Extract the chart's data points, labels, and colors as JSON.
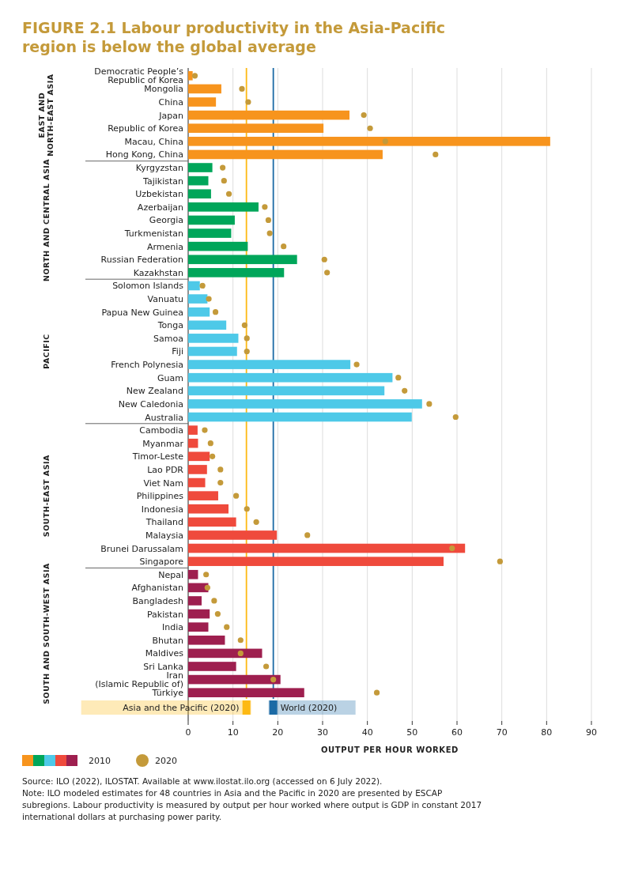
{
  "chart_data": {
    "type": "bar",
    "orientation": "horizontal",
    "title": "FIGURE 2.1 Labour productivity in the Asia-Pacific region is below the global average",
    "xlabel": "OUTPUT PER HOUR WORKED",
    "categories": [
      "Democratic People’s\nRepublic of Korea",
      "Mongolia",
      "China",
      "Japan",
      "Republic of Korea",
      "Macau, China",
      "Hong Kong, China",
      "Kyrgyzstan",
      "Tajikistan",
      "Uzbekistan",
      "Azerbaijan",
      "Georgia",
      "Turkmenistan",
      "Armenia",
      "Russian Federation",
      "Kazakhstan",
      "Solomon Islands",
      "Vanuatu",
      "Papua New Guinea",
      "Tonga",
      "Samoa",
      "Fiji",
      "French Polynesia",
      "Guam",
      "New Zealand",
      "New Caledonia",
      "Australia",
      "Cambodia",
      "Myanmar",
      "Timor-Leste",
      "Lao PDR",
      "Viet Nam",
      "Philippines",
      "Indonesia",
      "Thailand",
      "Malaysia",
      "Brunei Darussalam",
      "Singapore",
      "Nepal",
      "Afghanistan",
      "Bangladesh",
      "Pakistan",
      "India",
      "Bhutan",
      "Maldives",
      "Sri Lanka",
      "Iran\n(Islamic Republic of)",
      "Türkiye"
    ],
    "series": [
      {
        "name": "2010",
        "colors": [
          "#f7941d",
          "#f7941d",
          "#f7941d",
          "#f7941d",
          "#f7941d",
          "#f7941d",
          "#f7941d",
          "#00a65a",
          "#00a65a",
          "#00a65a",
          "#00a65a",
          "#00a65a",
          "#00a65a",
          "#00a65a",
          "#00a65a",
          "#00a65a",
          "#4ec9e8",
          "#4ec9e8",
          "#4ec9e8",
          "#4ec9e8",
          "#4ec9e8",
          "#4ec9e8",
          "#4ec9e8",
          "#4ec9e8",
          "#4ec9e8",
          "#4ec9e8",
          "#4ec9e8",
          "#ef4a3c",
          "#ef4a3c",
          "#ef4a3c",
          "#ef4a3c",
          "#ef4a3c",
          "#ef4a3c",
          "#ef4a3c",
          "#ef4a3c",
          "#ef4a3c",
          "#ef4a3c",
          "#ef4a3c",
          "#9e1f4f",
          "#9e1f4f",
          "#9e1f4f",
          "#9e1f4f",
          "#9e1f4f",
          "#9e1f4f",
          "#9e1f4f",
          "#9e1f4f",
          "#9e1f4f",
          "#9e1f4f"
        ],
        "values": [
          1,
          7.4,
          6.2,
          36,
          30.2,
          80.8,
          43.4,
          5.4,
          4.5,
          5.1,
          15.7,
          10.4,
          9.6,
          13.3,
          24.3,
          21.4,
          2.6,
          4.3,
          4.8,
          8.5,
          11.2,
          10.9,
          36.2,
          45.6,
          43.8,
          52.2,
          49.9,
          2.1,
          2.2,
          4.8,
          4.2,
          3.8,
          6.7,
          9,
          10.7,
          19.8,
          61.8,
          57,
          2.2,
          4.5,
          3,
          4.8,
          4.5,
          8.2,
          16.5,
          10.7,
          20.6,
          25.9
        ]
      },
      {
        "name": "2020",
        "type": "scatter",
        "color": "#c49a3a",
        "values": [
          1.5,
          12,
          13.4,
          39.2,
          40.6,
          44,
          55.2,
          7.7,
          8,
          9.1,
          17.1,
          17.9,
          18.2,
          21.3,
          30.4,
          31,
          3.2,
          4.6,
          6.1,
          12.6,
          13.1,
          13.1,
          37.6,
          46.9,
          48.3,
          53.8,
          59.7,
          3.7,
          5,
          5.4,
          7.2,
          7.2,
          10.7,
          13.1,
          15.2,
          26.6,
          58.9,
          69.6,
          4,
          4.3,
          5.8,
          6.6,
          8.6,
          11.7,
          11.7,
          17.4,
          19,
          42.1
        ]
      }
    ],
    "xlim": [
      0,
      90
    ],
    "xticks": [
      0,
      10,
      20,
      30,
      40,
      50,
      60,
      70,
      80,
      90
    ],
    "grid": "x",
    "legend": "bottom",
    "marker": "circle",
    "ref_lines": [
      {
        "axis": "x",
        "value": 13,
        "label": "Asia and the Pacific (2020)",
        "color": "#fdb913"
      },
      {
        "axis": "x",
        "value": 19,
        "label": "World (2020)",
        "color": "#1b6aa5"
      }
    ],
    "annotations": [
      "EAST AND\nNORTH-EAST ASIA",
      "NORTH AND CENTRAL ASIA",
      "PACIFIC",
      "SOUTH-EAST ASIA",
      "SOUTH AND SOUTH-WEST ASIA",
      "Source: ILO (2022), ILOSTAT. Available at www.ilostat.ilo.org (accessed on 6 July 2022).",
      "Note: ILO modeled estimates for 48 countries in Asia and the Pacific in 2020 are presented by ESCAP subregions. Labour productivity is measured by output per hour worked where output is GDP in constant 2017 international dollars at purchasing power parity."
    ]
  }
}
